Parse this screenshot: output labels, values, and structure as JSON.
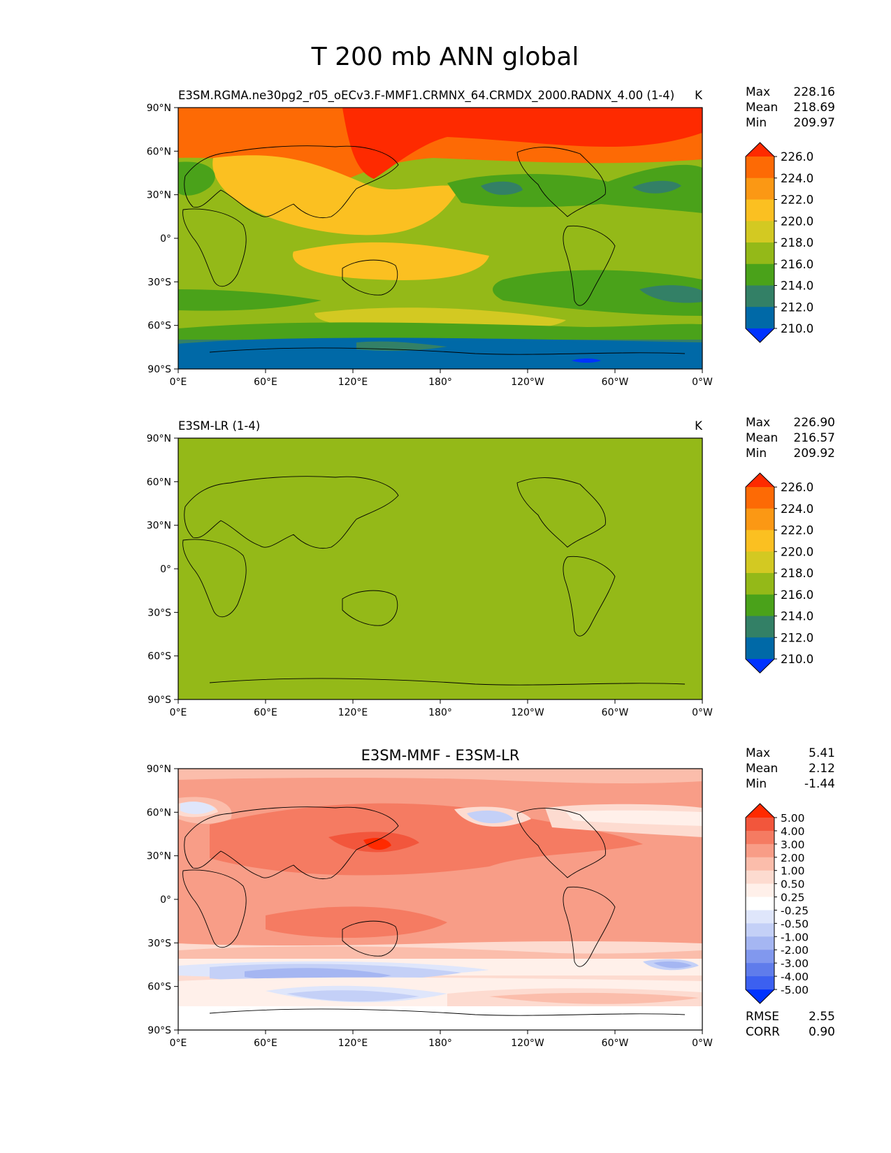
{
  "chart_data": {
    "type": "contour-map",
    "title": "T 200 mb ANN global",
    "x_ticks": [
      "0°E",
      "60°E",
      "120°E",
      "180°",
      "120°W",
      "60°W",
      "0°W"
    ],
    "y_ticks": [
      "90°N",
      "60°N",
      "30°N",
      "0°",
      "30°S",
      "60°S",
      "90°S"
    ],
    "panels": [
      {
        "id": "test",
        "title_left": "E3SM.RGMA.ne30pg2_r05_oECv3.F-MMF1.CRMNX_64.CRMDX_2000.RADNX_4.00 (1-4)",
        "title_right": "K",
        "title_center": "",
        "stats": [
          {
            "label": "Max",
            "value": "228.16"
          },
          {
            "label": "Mean",
            "value": "218.69"
          },
          {
            "label": "Min",
            "value": "209.97"
          }
        ],
        "levels": [
          "226.0",
          "224.0",
          "222.0",
          "220.0",
          "218.0",
          "216.0",
          "214.0",
          "212.0",
          "210.0"
        ],
        "colors": [
          "#fe2a00",
          "#fd6a05",
          "#fb9814",
          "#fbc021",
          "#d3c922",
          "#94b918",
          "#4aa21a",
          "#338066",
          "#0069a7",
          "#0033ff"
        ],
        "extra": []
      },
      {
        "id": "reference",
        "title_left": "E3SM-LR (1-4)",
        "title_right": "K",
        "title_center": "",
        "stats": [
          {
            "label": "Max",
            "value": "226.90"
          },
          {
            "label": "Mean",
            "value": "216.57"
          },
          {
            "label": "Min",
            "value": "209.92"
          }
        ],
        "levels": [
          "226.0",
          "224.0",
          "222.0",
          "220.0",
          "218.0",
          "216.0",
          "214.0",
          "212.0",
          "210.0"
        ],
        "colors": [
          "#fe2a00",
          "#fd6a05",
          "#fb9814",
          "#fbc021",
          "#d3c922",
          "#94b918",
          "#4aa21a",
          "#338066",
          "#0069a7",
          "#0033ff"
        ],
        "extra": []
      },
      {
        "id": "difference",
        "title_left": "",
        "title_right": "",
        "title_center": "E3SM-MMF - E3SM-LR",
        "stats": [
          {
            "label": "Max",
            "value": "5.41"
          },
          {
            "label": "Mean",
            "value": "2.12"
          },
          {
            "label": "Min",
            "value": "-1.44"
          }
        ],
        "levels": [
          "5.00",
          "4.00",
          "3.00",
          "2.00",
          "1.00",
          "0.50",
          "0.25",
          "-0.25",
          "-0.50",
          "-1.00",
          "-2.00",
          "-3.00",
          "-4.00",
          "-5.00"
        ],
        "colors": [
          "#ff2a00",
          "#f2563c",
          "#f57b62",
          "#f89d87",
          "#fbbdab",
          "#fddbd0",
          "#fff0ea",
          "#ffffff",
          "#dfe6fb",
          "#c4d0f7",
          "#a5b6f2",
          "#8198ee",
          "#5f7ceb",
          "#3c60f0",
          "#0033ff"
        ],
        "extra": [
          {
            "label": "RMSE",
            "value": "2.55"
          },
          {
            "label": "CORR",
            "value": "0.90"
          }
        ]
      }
    ]
  }
}
